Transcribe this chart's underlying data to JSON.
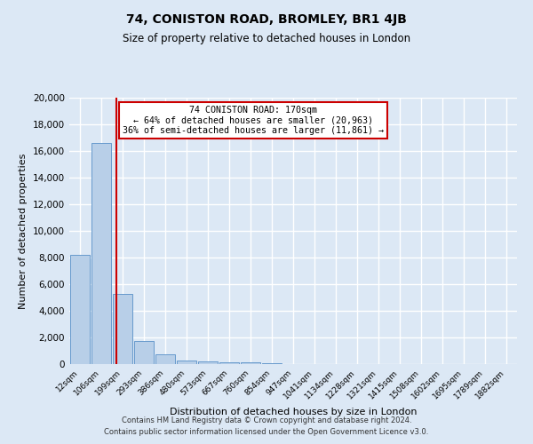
{
  "title": "74, CONISTON ROAD, BROMLEY, BR1 4JB",
  "subtitle": "Size of property relative to detached houses in London",
  "xlabel": "Distribution of detached houses by size in London",
  "ylabel": "Number of detached properties",
  "bar_labels": [
    "12sqm",
    "106sqm",
    "199sqm",
    "293sqm",
    "386sqm",
    "480sqm",
    "573sqm",
    "667sqm",
    "760sqm",
    "854sqm",
    "947sqm",
    "1041sqm",
    "1134sqm",
    "1228sqm",
    "1321sqm",
    "1415sqm",
    "1508sqm",
    "1602sqm",
    "1695sqm",
    "1789sqm",
    "1882sqm"
  ],
  "bar_heights": [
    8200,
    16600,
    5300,
    1750,
    750,
    300,
    200,
    150,
    130,
    100,
    0,
    0,
    0,
    0,
    0,
    0,
    0,
    0,
    0,
    0,
    0
  ],
  "bar_color": "#b8cfe8",
  "bar_edgecolor": "#6699cc",
  "vline_color": "#cc0000",
  "ylim": [
    0,
    20000
  ],
  "yticks": [
    0,
    2000,
    4000,
    6000,
    8000,
    10000,
    12000,
    14000,
    16000,
    18000,
    20000
  ],
  "annotation_title": "74 CONISTON ROAD: 170sqm",
  "annotation_line1": "← 64% of detached houses are smaller (20,963)",
  "annotation_line2": "36% of semi-detached houses are larger (11,861) →",
  "annotation_box_color": "#ffffff",
  "annotation_box_edgecolor": "#cc0000",
  "footer_line1": "Contains HM Land Registry data © Crown copyright and database right 2024.",
  "footer_line2": "Contains public sector information licensed under the Open Government Licence v3.0.",
  "background_color": "#dce8f5",
  "plot_background": "#dce8f5",
  "grid_color": "#ffffff",
  "title_fontsize": 10,
  "subtitle_fontsize": 8.5,
  "footer_fontsize": 6.0
}
